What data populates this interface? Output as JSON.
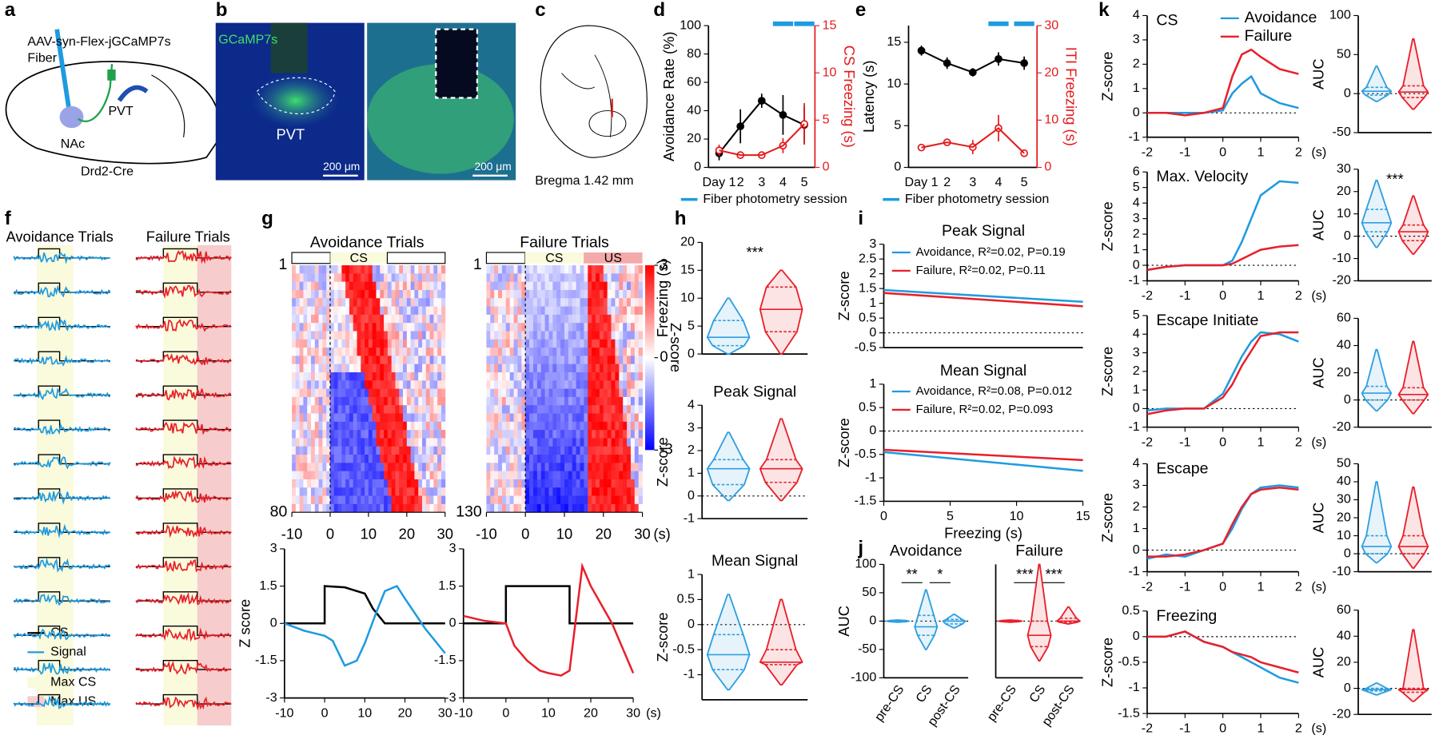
{
  "panel_labels": [
    "a",
    "b",
    "c",
    "d",
    "e",
    "f",
    "g",
    "h",
    "i",
    "j",
    "k"
  ],
  "a": {
    "virus": "AAV-syn-Flex-jGCaMP7s",
    "fiber": "Fiber",
    "pvt": "PVT",
    "nac": "NAc",
    "mouse": "Drd2-Cre"
  },
  "b": {
    "channel": "GCaMP7s",
    "region": "PVT",
    "scale_left": "200 μm",
    "scale_right": "200 μm"
  },
  "c": {
    "caption": "Bregma 1.42 mm"
  },
  "f": {
    "titles": [
      "Avoidance Trials",
      "Failure Trials"
    ],
    "legend": [
      "CS",
      "Signal",
      "Max CS",
      "Max US"
    ]
  },
  "g": {
    "titles": [
      "Avoidance Trials",
      "Failure Trials"
    ],
    "epochs": [
      "CS",
      "CS",
      "US"
    ],
    "colorbar_label": "Z-score",
    "colorbar_ticks": [
      3,
      0,
      -3
    ]
  },
  "chart_data": [
    {
      "type": "line",
      "categories": [
        "Day 1",
        "2",
        "3",
        "4",
        "5"
      ],
      "ylim": [
        0,
        100
      ],
      "yticks": [
        0,
        20,
        40,
        60,
        80,
        100
      ],
      "ylabel": "Avoidance Rate (%)",
      "y2lim": [
        0,
        15
      ],
      "y2ticks": [
        0,
        5,
        10,
        15
      ],
      "y2label": "CS Freezing (s)",
      "series": [
        {
          "color": "#000000",
          "values": [
            10,
            29,
            47,
            37,
            30
          ],
          "errors": [
            5,
            12,
            5,
            14,
            13
          ]
        },
        {
          "color": "#e41a1c",
          "axis": "y2",
          "values": [
            1.8,
            1.3,
            1.3,
            2.3,
            4.6
          ],
          "errors": [
            0.6,
            0.4,
            0.2,
            0.8,
            2.2
          ]
        }
      ],
      "note": "Fiber photometry session",
      "note_color": "#1e9be0"
    },
    {
      "type": "line",
      "categories": [
        "Day 1",
        "2",
        "3",
        "4",
        "5"
      ],
      "ylim": [
        0,
        17
      ],
      "yticks": [
        0,
        5,
        10,
        15
      ],
      "ylabel": "Latency (s)",
      "y2lim": [
        0,
        30
      ],
      "y2ticks": [
        0,
        10,
        20,
        30
      ],
      "y2label": "ITI Freezing (s)",
      "series": [
        {
          "color": "#000000",
          "values": [
            14,
            12.5,
            11.4,
            13,
            12.5
          ],
          "errors": [
            0.6,
            0.7,
            0.5,
            0.8,
            0.8
          ]
        },
        {
          "color": "#e41a1c",
          "axis": "y2",
          "values": [
            4.2,
            5.3,
            4.3,
            8.3,
            3
          ],
          "errors": [
            0.4,
            0.8,
            1.5,
            2.8,
            0.4
          ]
        }
      ],
      "note": "Fiber photometry session",
      "note_color": "#1e9be0"
    },
    {
      "type": "heatmap",
      "xlim": [
        -10,
        30
      ],
      "xticks": [
        -10,
        0,
        10,
        20,
        30
      ],
      "ylim": [
        1,
        80
      ],
      "yticks": [
        1,
        80
      ]
    },
    {
      "type": "heatmap",
      "xlim": [
        -10,
        30
      ],
      "xticks": [
        -10,
        0,
        10,
        20,
        30
      ],
      "x_unit": "(s)",
      "ylim": [
        1,
        130
      ],
      "yticks": [
        1,
        130
      ]
    },
    {
      "type": "line",
      "xlim": [
        -10,
        30
      ],
      "xticks": [
        -10,
        0,
        10,
        20,
        30
      ],
      "ylim": [
        -3,
        3
      ],
      "yticks": [
        -3,
        -1.5,
        0,
        1.5,
        3
      ],
      "ylabel": "Z score",
      "series": [
        {
          "color": "#000000",
          "x": [
            -10,
            0,
            0,
            5,
            10,
            12,
            15,
            30
          ],
          "values": [
            0,
            0,
            1.5,
            1.45,
            1.2,
            0.6,
            0,
            0
          ]
        },
        {
          "color": "#1e9be0",
          "x": [
            -10,
            -5,
            0,
            2,
            5,
            8,
            10,
            13,
            15,
            18,
            20,
            25,
            30
          ],
          "values": [
            0,
            -0.3,
            -0.5,
            -0.7,
            -1.7,
            -1.5,
            -0.8,
            0.5,
            1.3,
            1.5,
            1,
            -0.2,
            -1.2
          ]
        }
      ]
    },
    {
      "type": "line",
      "xlim": [
        -10,
        30
      ],
      "xticks": [
        -10,
        0,
        10,
        20,
        30
      ],
      "x_unit": "(s)",
      "ylim": [
        -3,
        3
      ],
      "yticks": [
        -3,
        -1.5,
        0,
        1.5,
        3
      ],
      "series": [
        {
          "color": "#000000",
          "x": [
            -10,
            0,
            0,
            15,
            15,
            30
          ],
          "values": [
            0,
            0,
            1.5,
            1.5,
            0,
            0
          ]
        },
        {
          "color": "#e8202a",
          "x": [
            -10,
            -5,
            0,
            2,
            5,
            8,
            10,
            13,
            15,
            16,
            18,
            20,
            25,
            30
          ],
          "values": [
            0.3,
            0.1,
            0,
            -0.9,
            -1.5,
            -1.9,
            -2,
            -2.1,
            -1.9,
            -0.5,
            2.3,
            1.5,
            0,
            -2
          ]
        }
      ]
    },
    {
      "type": "violin",
      "ylim": [
        0,
        20
      ],
      "yticks": [
        0,
        5,
        10,
        15,
        20
      ],
      "ylabel": "Freezing (s)",
      "annotations": [
        "***"
      ],
      "series": [
        {
          "color": "#2f9fe0",
          "stats": [
            0,
            1.5,
            3,
            6,
            10
          ]
        },
        {
          "color": "#e8202a",
          "stats": [
            0,
            4,
            8,
            12,
            15
          ]
        }
      ]
    },
    {
      "type": "violin",
      "title": "Peak Signal",
      "ylim": [
        -1,
        4
      ],
      "yticks": [
        -1,
        0,
        1,
        2,
        3,
        4
      ],
      "ylabel": "Z-score",
      "refline": 0,
      "series": [
        {
          "color": "#2f9fe0",
          "stats": [
            -0.2,
            0.5,
            1.2,
            1.6,
            2.8
          ]
        },
        {
          "color": "#e8202a",
          "stats": [
            -0.2,
            0.6,
            1.2,
            1.6,
            3.4
          ]
        }
      ]
    },
    {
      "type": "violin",
      "title": "Mean Signal",
      "ylim": [
        -1.5,
        1
      ],
      "yticks": [
        -1,
        -0.5,
        0,
        0.5,
        1
      ],
      "ylabel": "Z-score",
      "refline": 0,
      "series": [
        {
          "color": "#2f9fe0",
          "stats": [
            -1.3,
            -0.9,
            -0.6,
            -0.2,
            0.6
          ]
        },
        {
          "color": "#e8202a",
          "stats": [
            -1.2,
            -0.8,
            -0.75,
            -0.5,
            0.5
          ]
        }
      ]
    },
    {
      "type": "line",
      "title": "Peak Signal",
      "xlim": [
        0,
        15
      ],
      "x": [
        0,
        15
      ],
      "ylim": [
        -0.5,
        3
      ],
      "yticks": [
        -0.5,
        0,
        0.5,
        1,
        1.5,
        2,
        2.5,
        3
      ],
      "ylabel": "Z-score",
      "refline": 0,
      "series": [
        {
          "name": "Avoidance, R²=0.02, P=0.19",
          "color": "#1e9be0",
          "values": [
            1.45,
            1.05
          ]
        },
        {
          "name": "Failure, R²=0.02, P=0.11",
          "color": "#e8202a",
          "values": [
            1.35,
            0.9
          ]
        }
      ]
    },
    {
      "type": "line",
      "title": "Mean Signal",
      "xlim": [
        0,
        15
      ],
      "x": [
        0,
        15
      ],
      "xticks": [
        0,
        5,
        10,
        15
      ],
      "xlabel": "Freezing (s)",
      "ylim": [
        -1.5,
        1
      ],
      "yticks": [
        -1.5,
        -1,
        -0.5,
        0,
        0.5,
        1
      ],
      "ylabel": "Z-score",
      "refline": 0,
      "series": [
        {
          "name": "Avoidance, R²=0.08, P=0.012",
          "color": "#1e9be0",
          "values": [
            -0.45,
            -0.85
          ]
        },
        {
          "name": "Failure, R²=0.02, P=0.093",
          "color": "#e8202a",
          "values": [
            -0.4,
            -0.62
          ]
        }
      ]
    },
    {
      "type": "violin",
      "title": "Avoidance",
      "categories": [
        "pre-CS",
        "CS",
        "post-CS"
      ],
      "ylim": [
        -100,
        100
      ],
      "yticks": [
        -100,
        -50,
        0,
        50,
        100
      ],
      "ylabel": "AUC",
      "refline": 0,
      "annotations": [
        "**",
        "*"
      ],
      "series": [
        {
          "color": "#2f9fe0",
          "stats": [
            -2,
            -1,
            0,
            1,
            2
          ]
        },
        {
          "color": "#2f9fe0",
          "stats": [
            -50,
            -25,
            -10,
            10,
            55
          ]
        },
        {
          "color": "#2f9fe0",
          "stats": [
            -12,
            -5,
            0,
            3,
            12
          ]
        }
      ]
    },
    {
      "type": "violin",
      "title": "Failure",
      "categories": [
        "pre-CS",
        "CS",
        "post-CS"
      ],
      "ylim": [
        -100,
        100
      ],
      "refline": 0,
      "annotations": [
        "***",
        "***"
      ],
      "series": [
        {
          "color": "#e8202a",
          "stats": [
            -2,
            -1,
            0,
            1,
            2
          ]
        },
        {
          "color": "#e8202a",
          "stats": [
            -70,
            -45,
            -25,
            0,
            100
          ]
        },
        {
          "color": "#e8202a",
          "stats": [
            -5,
            -2,
            0,
            5,
            25
          ]
        }
      ]
    },
    {
      "type": "line",
      "title": "CS",
      "x": [
        -2,
        -1.5,
        -1,
        -0.5,
        0,
        0.25,
        0.5,
        0.75,
        1,
        1.5,
        2
      ],
      "xlim": [
        -2,
        2
      ],
      "xticks": [
        -2,
        -1,
        0,
        1,
        2
      ],
      "x_unit": "(s)",
      "ylim": [
        -1,
        4
      ],
      "yticks": [
        -1,
        0,
        1,
        2,
        3,
        4
      ],
      "ylabel": "Z-score",
      "refline": 0,
      "series": [
        {
          "name": "Avoidance",
          "color": "#1e9be0",
          "values": [
            0,
            0,
            0,
            0,
            0.1,
            0.8,
            1.2,
            1.5,
            0.8,
            0.4,
            0.2
          ]
        },
        {
          "name": "Failure",
          "color": "#e8202a",
          "values": [
            0,
            0,
            -0.1,
            0,
            0.2,
            1.5,
            2.4,
            2.6,
            2.3,
            1.8,
            1.6
          ]
        }
      ]
    },
    {
      "type": "line",
      "title": "Max. Velocity",
      "x": [
        -2,
        -1.5,
        -1,
        -0.5,
        0,
        0.25,
        0.5,
        0.75,
        1,
        1.5,
        2
      ],
      "xlim": [
        -2,
        2
      ],
      "xticks": [
        -2,
        -1,
        0,
        1,
        2
      ],
      "x_unit": "(s)",
      "ylim": [
        -1,
        6
      ],
      "yticks": [
        -1,
        0,
        1,
        2,
        3,
        4,
        5,
        6
      ],
      "ylabel": "Z-score",
      "refline": 0,
      "series": [
        {
          "color": "#1e9be0",
          "values": [
            -0.3,
            -0.1,
            0,
            0,
            0,
            0.3,
            1.5,
            3,
            4.5,
            5.4,
            5.3
          ]
        },
        {
          "color": "#e8202a",
          "values": [
            -0.3,
            -0.1,
            0,
            0,
            0,
            0.1,
            0.4,
            0.7,
            1,
            1.2,
            1.3
          ]
        }
      ]
    },
    {
      "type": "line",
      "title": "Escape Initiate",
      "x": [
        -2,
        -1.5,
        -1,
        -0.5,
        0,
        0.25,
        0.5,
        0.75,
        1,
        1.5,
        2
      ],
      "xlim": [
        -2,
        2
      ],
      "xticks": [
        -2,
        -1,
        0,
        1,
        2
      ],
      "x_unit": "(s)",
      "ylim": [
        -1,
        5
      ],
      "yticks": [
        -1,
        0,
        1,
        2,
        3,
        4,
        5
      ],
      "ylabel": "Z-score",
      "refline": 0,
      "series": [
        {
          "color": "#1e9be0",
          "values": [
            -0.1,
            0,
            0,
            0,
            0.8,
            1.8,
            2.8,
            3.6,
            4.1,
            4,
            3.6
          ]
        },
        {
          "color": "#e8202a",
          "values": [
            -0.3,
            -0.1,
            0,
            0,
            0.6,
            1.3,
            2.3,
            3.1,
            3.9,
            4.1,
            4.1
          ]
        }
      ]
    },
    {
      "type": "line",
      "title": "Escape",
      "x": [
        -2,
        -1.5,
        -1,
        -0.5,
        0,
        0.25,
        0.5,
        0.75,
        1,
        1.5,
        2
      ],
      "xlim": [
        -2,
        2
      ],
      "xticks": [
        -2,
        -1,
        0,
        1,
        2
      ],
      "x_unit": "(s)",
      "ylim": [
        -1,
        4
      ],
      "yticks": [
        -1,
        0,
        1,
        2,
        3,
        4
      ],
      "ylabel": "Z-score",
      "refline": 0,
      "series": [
        {
          "color": "#1e9be0",
          "values": [
            -0.4,
            -0.2,
            -0.3,
            0,
            0.3,
            1,
            1.9,
            2.6,
            2.9,
            3,
            2.9
          ]
        },
        {
          "color": "#e8202a",
          "values": [
            -0.3,
            -0.3,
            -0.2,
            0,
            0.3,
            1.2,
            2,
            2.6,
            2.8,
            2.9,
            2.8
          ]
        }
      ]
    },
    {
      "type": "line",
      "title": "Freezing",
      "x": [
        -2,
        -1.5,
        -1,
        -0.5,
        0,
        0.25,
        0.5,
        0.75,
        1,
        1.5,
        2
      ],
      "xlim": [
        -2,
        2
      ],
      "xticks": [
        -2,
        -1,
        0,
        1,
        2
      ],
      "x_unit": "(s)",
      "ylim": [
        -1.5,
        0.5
      ],
      "yticks": [
        -1.5,
        -1,
        -0.5,
        0,
        0.5
      ],
      "ylabel": "Z-score",
      "refline": 0,
      "series": [
        {
          "color": "#1e9be0",
          "values": [
            0,
            0,
            0.1,
            -0.1,
            -0.2,
            -0.3,
            -0.4,
            -0.5,
            -0.6,
            -0.8,
            -0.9
          ]
        },
        {
          "color": "#e8202a",
          "values": [
            0,
            0,
            0.1,
            -0.1,
            -0.2,
            -0.3,
            -0.35,
            -0.4,
            -0.5,
            -0.6,
            -0.7
          ]
        }
      ]
    },
    {
      "type": "violin",
      "ylim": [
        -50,
        100
      ],
      "yticks": [
        -50,
        0,
        50,
        100
      ],
      "ylabel": "AUC",
      "refline": 0,
      "series": [
        {
          "color": "#2f9fe0",
          "stats": [
            -10,
            -2,
            3,
            8,
            35
          ]
        },
        {
          "color": "#e8202a",
          "stats": [
            -20,
            -5,
            2,
            10,
            70
          ]
        }
      ]
    },
    {
      "type": "violin",
      "ylim": [
        -20,
        30
      ],
      "yticks": [
        -20,
        -10,
        0,
        10,
        20,
        30
      ],
      "ylabel": "AUC",
      "refline": 0,
      "annotations": [
        "***"
      ],
      "series": [
        {
          "color": "#2f9fe0",
          "stats": [
            -5,
            2,
            6,
            12,
            25
          ]
        },
        {
          "color": "#e8202a",
          "stats": [
            -8,
            -2,
            2,
            5,
            18
          ]
        }
      ]
    },
    {
      "type": "violin",
      "ylim": [
        -20,
        60
      ],
      "yticks": [
        -20,
        0,
        20,
        40,
        60
      ],
      "ylabel": "AUC",
      "refline": 0,
      "series": [
        {
          "color": "#2f9fe0",
          "stats": [
            -8,
            0,
            5,
            10,
            37
          ]
        },
        {
          "color": "#e8202a",
          "stats": [
            -10,
            0,
            4,
            9,
            43
          ]
        }
      ]
    },
    {
      "type": "violin",
      "ylim": [
        -10,
        50
      ],
      "yticks": [
        -10,
        0,
        10,
        20,
        30,
        40,
        50
      ],
      "ylabel": "AUC",
      "refline": 0,
      "series": [
        {
          "color": "#2f9fe0",
          "stats": [
            -5,
            0,
            4,
            10,
            40
          ]
        },
        {
          "color": "#e8202a",
          "stats": [
            -8,
            0,
            4,
            10,
            37
          ]
        }
      ]
    },
    {
      "type": "violin",
      "ylim": [
        -20,
        60
      ],
      "yticks": [
        -20,
        0,
        20,
        40,
        60
      ],
      "ylabel": "AUC",
      "refline": 0,
      "series": [
        {
          "color": "#2f9fe0",
          "stats": [
            -5,
            -2,
            -1,
            0,
            4
          ]
        },
        {
          "color": "#e8202a",
          "stats": [
            -10,
            -3,
            -1,
            0,
            45
          ]
        }
      ]
    }
  ]
}
